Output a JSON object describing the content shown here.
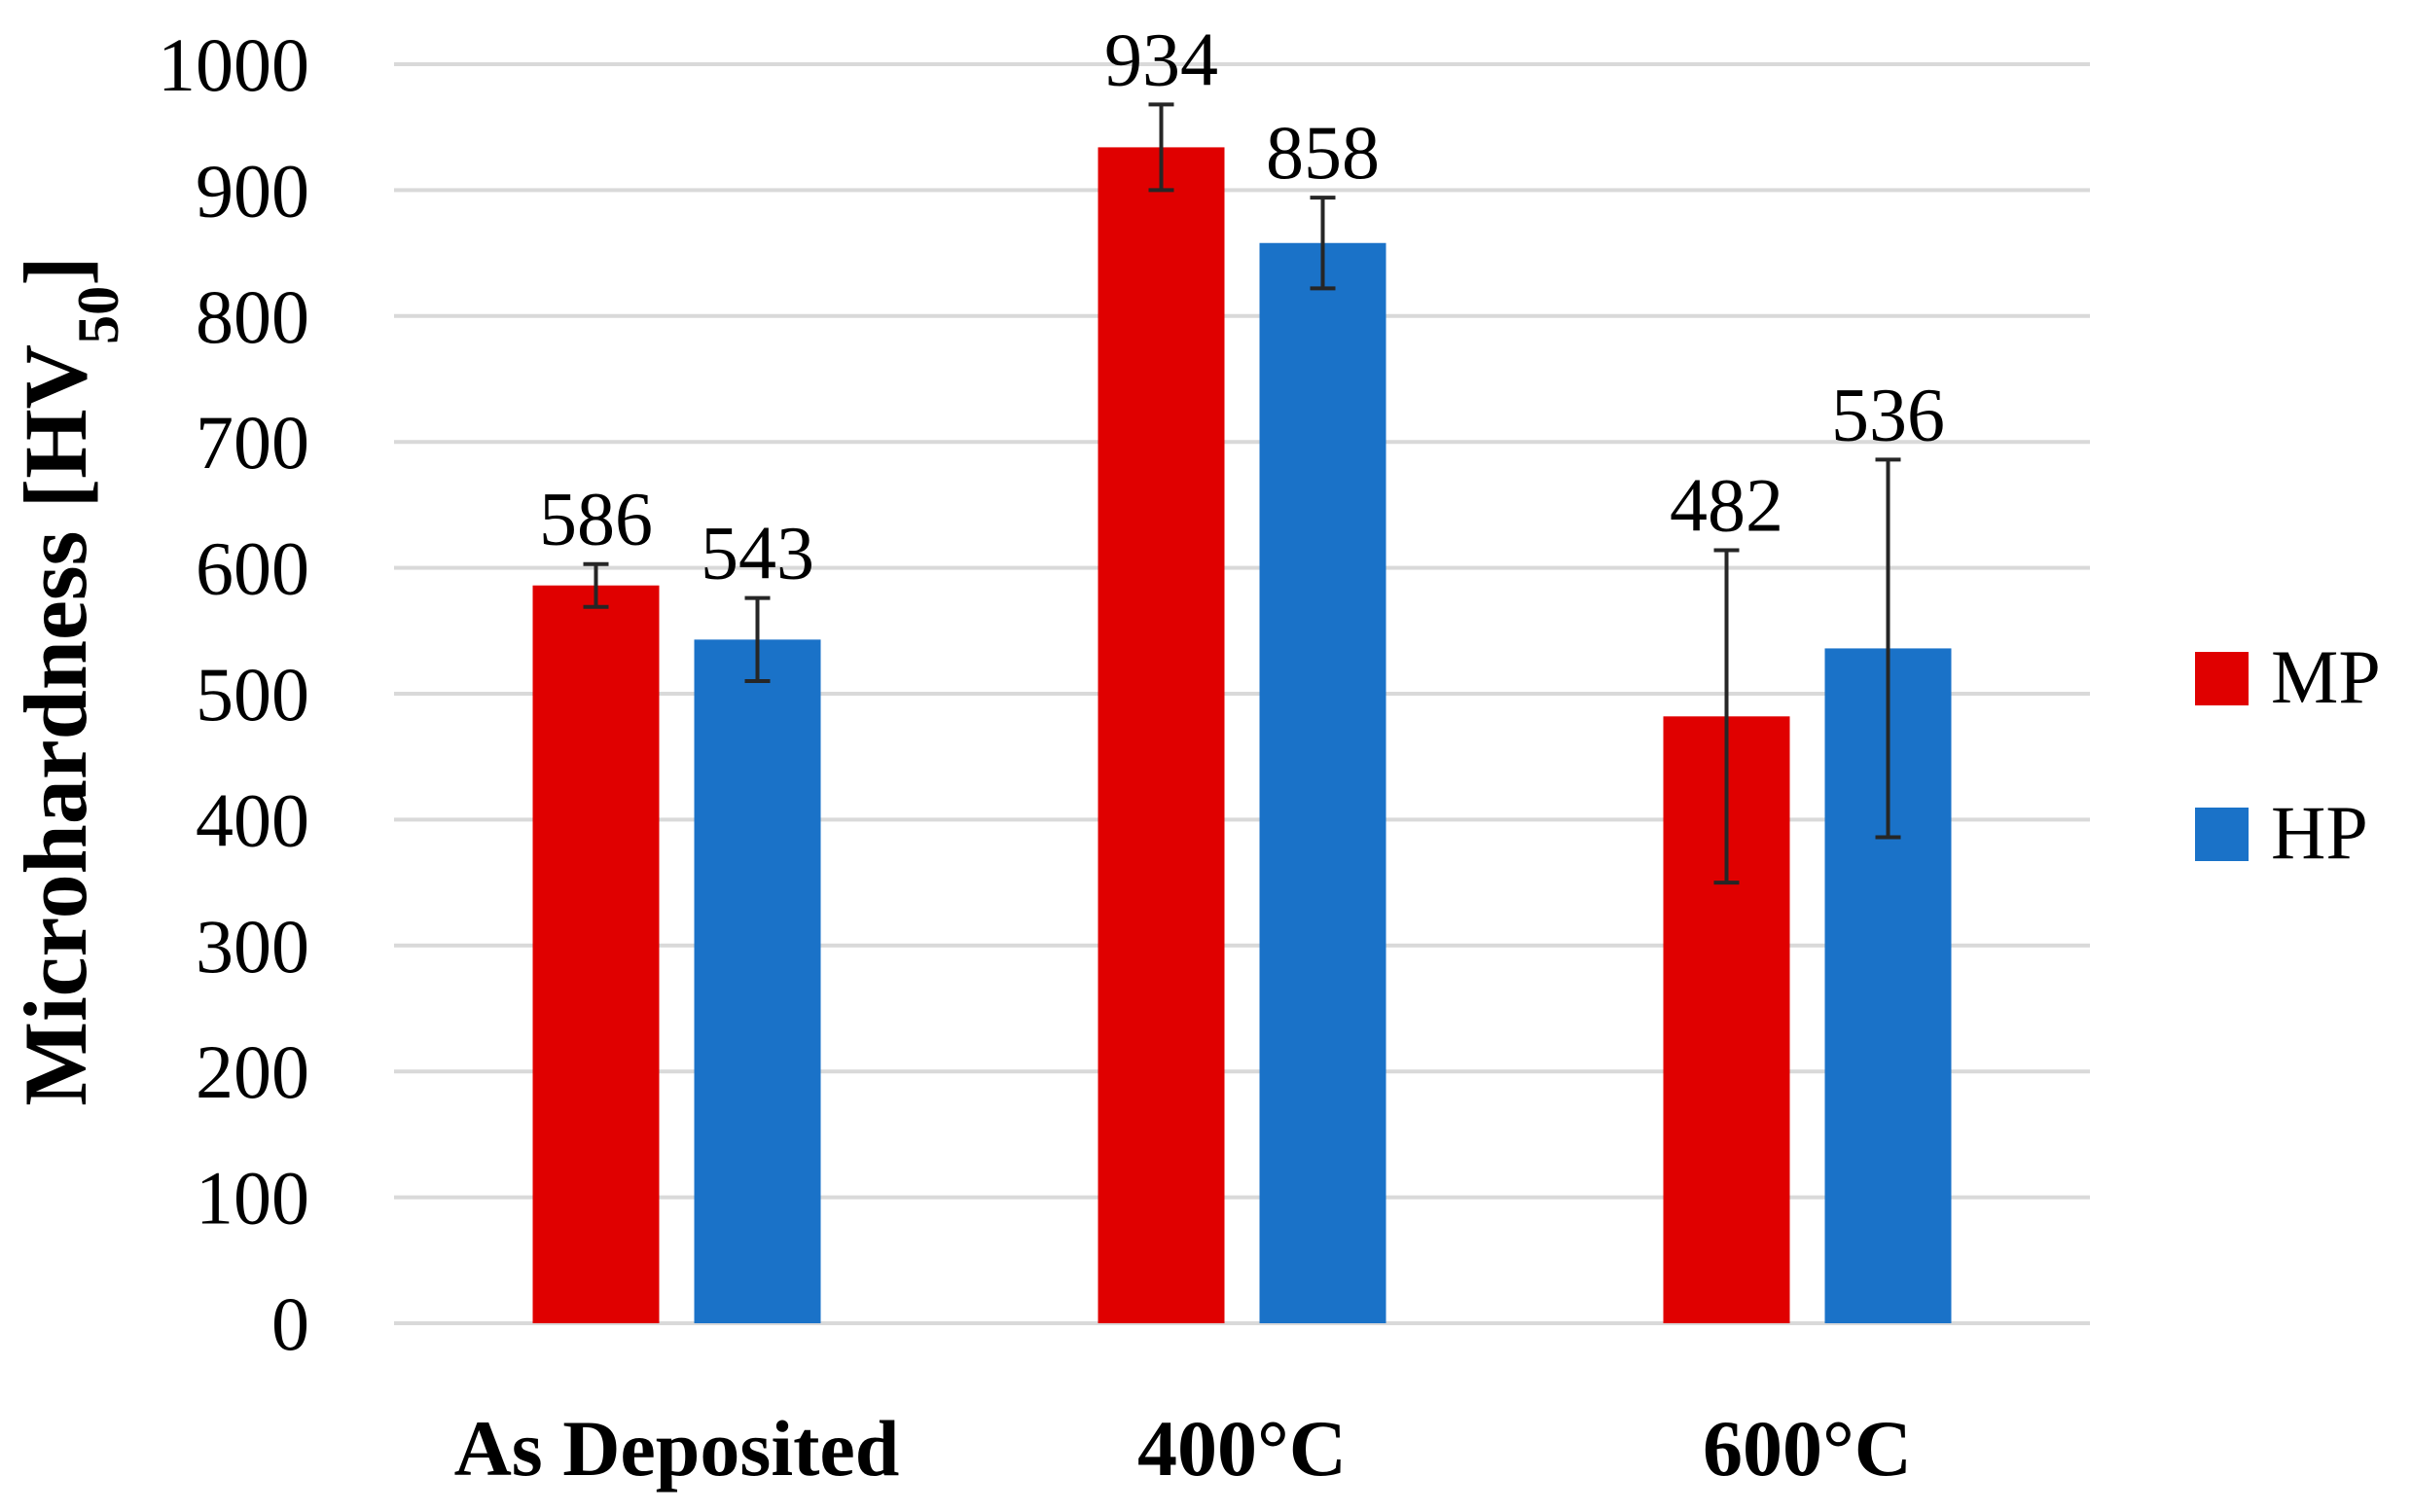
{
  "chart_data": {
    "type": "bar",
    "title": "",
    "xlabel": "",
    "ylabel": "Microhardness [HV",
    "ylabel_subscript": "50",
    "ylabel_suffix": "]",
    "categories": [
      "As Deposited",
      "400°C",
      "600°C"
    ],
    "series": [
      {
        "name": "MP",
        "color": "#e00000",
        "values": [
          586,
          934,
          482
        ],
        "labels": [
          "586",
          "934",
          "482"
        ],
        "errors": [
          17,
          34,
          132
        ]
      },
      {
        "name": "HP",
        "color": "#1a72c8",
        "values": [
          543,
          858,
          536
        ],
        "labels": [
          "543",
          "858",
          "536"
        ],
        "errors": [
          33,
          36,
          150
        ]
      }
    ],
    "ylim": [
      0,
      1000
    ],
    "yticks": [
      0,
      100,
      200,
      300,
      400,
      500,
      600,
      700,
      800,
      900,
      1000
    ],
    "ytick_labels": [
      "0",
      "100",
      "200",
      "300",
      "400",
      "500",
      "600",
      "700",
      "800",
      "900",
      "1000"
    ],
    "grid": true,
    "legend_position": "right"
  }
}
